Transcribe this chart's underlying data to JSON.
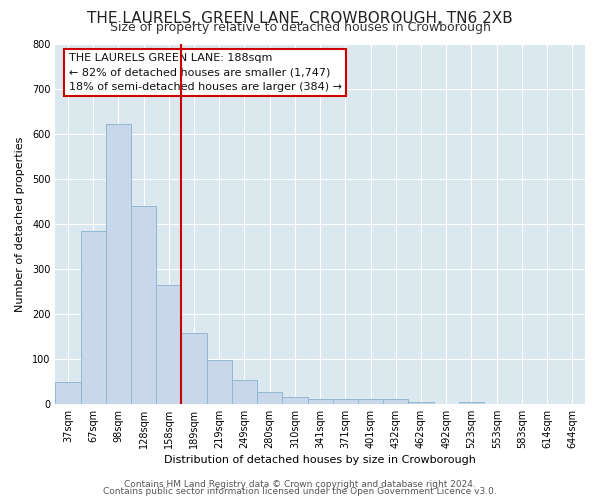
{
  "title": "THE LAURELS, GREEN LANE, CROWBOROUGH, TN6 2XB",
  "subtitle": "Size of property relative to detached houses in Crowborough",
  "xlabel": "Distribution of detached houses by size in Crowborough",
  "ylabel": "Number of detached properties",
  "categories": [
    "37sqm",
    "67sqm",
    "98sqm",
    "128sqm",
    "158sqm",
    "189sqm",
    "219sqm",
    "249sqm",
    "280sqm",
    "310sqm",
    "341sqm",
    "371sqm",
    "401sqm",
    "432sqm",
    "462sqm",
    "492sqm",
    "523sqm",
    "553sqm",
    "583sqm",
    "614sqm",
    "644sqm"
  ],
  "values": [
    48,
    385,
    622,
    440,
    265,
    157,
    98,
    53,
    27,
    15,
    10,
    10,
    10,
    10,
    5,
    0,
    5,
    0,
    0,
    0,
    0
  ],
  "bar_color": "#c8d8ea",
  "bar_edge_color": "#90b8d0",
  "marker_index": 5,
  "marker_color": "#cc0000",
  "ylim": [
    0,
    800
  ],
  "yticks": [
    0,
    100,
    200,
    300,
    400,
    500,
    600,
    700,
    800
  ],
  "annotation_title": "THE LAURELS GREEN LANE: 188sqm",
  "annotation_line1": "← 82% of detached houses are smaller (1,747)",
  "annotation_line2": "18% of semi-detached houses are larger (384) →",
  "annotation_box_color": "#ffffff",
  "annotation_box_edge": "#cc0000",
  "footer1": "Contains HM Land Registry data © Crown copyright and database right 2024.",
  "footer2": "Contains public sector information licensed under the Open Government Licence v3.0.",
  "background_color": "#ffffff",
  "plot_bg_color": "#dce8f0",
  "grid_color": "#ffffff",
  "title_fontsize": 11,
  "subtitle_fontsize": 9,
  "label_fontsize": 8,
  "tick_fontsize": 7,
  "annotation_fontsize": 8,
  "footer_fontsize": 6.5
}
